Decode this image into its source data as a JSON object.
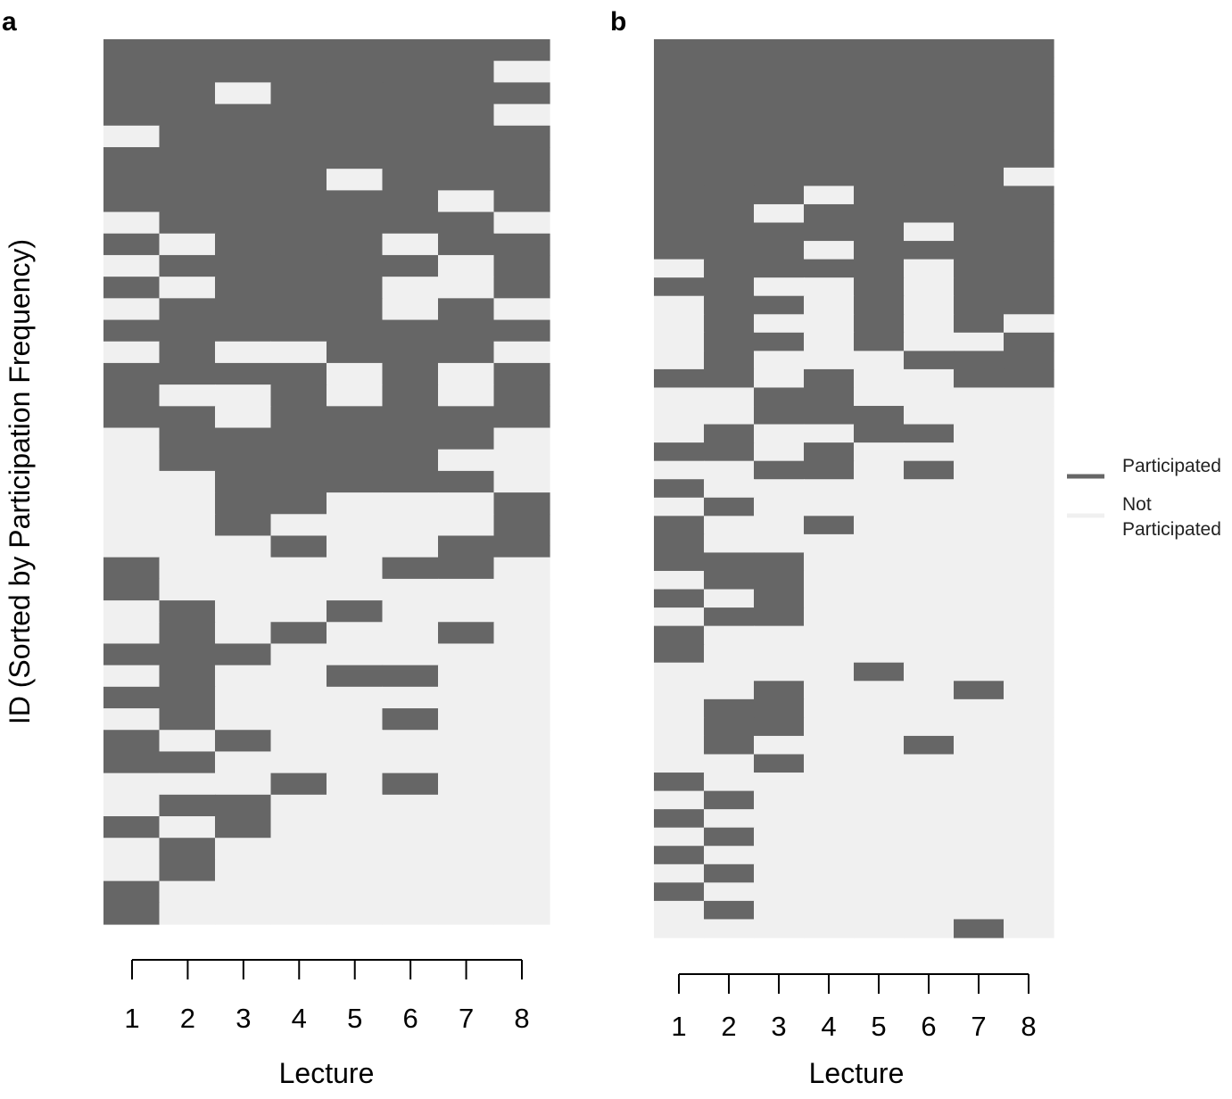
{
  "figure": {
    "ylabel": "ID (Sorted by Participation Frequency)",
    "legend": {
      "position": "right",
      "items": [
        {
          "label": "Participated",
          "color": "#666666"
        },
        {
          "label": "Not Participated",
          "label_lines": [
            "Not",
            "Participated"
          ],
          "color": "#f0f0f0"
        }
      ]
    }
  },
  "chart_data": [
    {
      "type": "heatmap",
      "panel": "a",
      "xlabel": "Lecture",
      "x": [
        1,
        2,
        3,
        4,
        5,
        6,
        7,
        8
      ],
      "y_order": "sorted by participation frequency (descending, top to bottom)",
      "colors": {
        "participated": "#666666",
        "not_participated": "#f0f0f0"
      },
      "grid": false,
      "rows": [
        "11111111",
        "11111110",
        "11011111",
        "11111110",
        "01111111",
        "11111111",
        "11110111",
        "11111101",
        "01111110",
        "10111011",
        "01111101",
        "10111001",
        "01111010",
        "11111111",
        "01001110",
        "11110101",
        "10010101",
        "11011111",
        "01111110",
        "01111100",
        "00111110",
        "00110001",
        "00100001",
        "00010011",
        "10000110",
        "10000000",
        "01001000",
        "01010010",
        "11100000",
        "01001100",
        "11000000",
        "01000100",
        "10100000",
        "11000000",
        "00010100",
        "01100000",
        "10100000",
        "01000000",
        "01000000",
        "10000000",
        "10000000"
      ]
    },
    {
      "type": "heatmap",
      "panel": "b",
      "xlabel": "Lecture",
      "x": [
        1,
        2,
        3,
        4,
        5,
        6,
        7,
        8
      ],
      "y_order": "sorted by participation frequency (descending, top to bottom)",
      "colors": {
        "participated": "#666666",
        "not_participated": "#f0f0f0"
      },
      "grid": false,
      "rows": [
        "11111111",
        "11111111",
        "11111111",
        "11111111",
        "11111111",
        "11111111",
        "11111111",
        "11111110",
        "11101111",
        "11011111",
        "11111011",
        "11101111",
        "01111011",
        "11001011",
        "01101011",
        "01001010",
        "01101001",
        "01000111",
        "11010011",
        "00110000",
        "00111000",
        "01001100",
        "11010000",
        "00110100",
        "10000000",
        "01000000",
        "10010000",
        "10000000",
        "11100000",
        "01100000",
        "10100000",
        "01100000",
        "10000000",
        "10000000",
        "00001000",
        "00100010",
        "01100000",
        "01100000",
        "01000100",
        "00100000",
        "10000000",
        "01000000",
        "10000000",
        "01000000",
        "10000000",
        "01000000",
        "10000000",
        "01000000",
        "00000010"
      ]
    }
  ]
}
